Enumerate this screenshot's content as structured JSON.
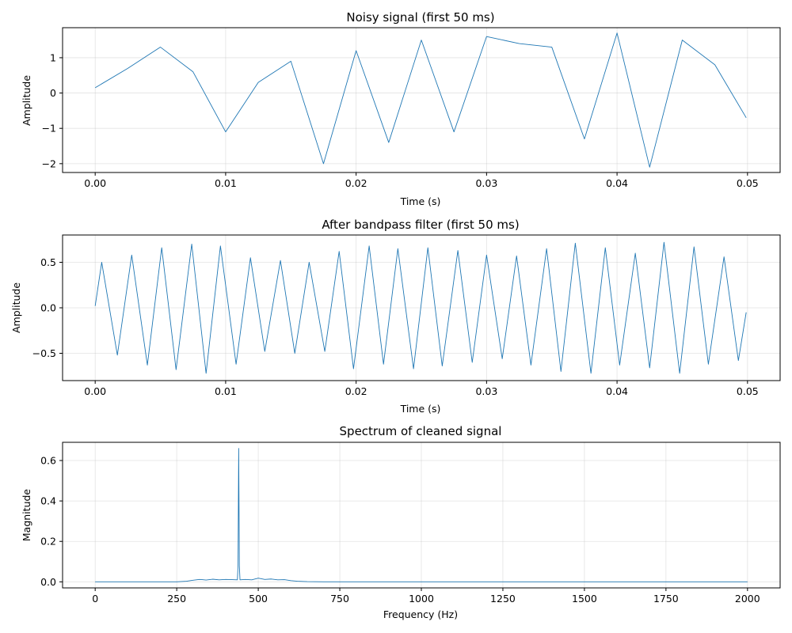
{
  "colors": {
    "series": "#1f77b4"
  },
  "chart_data": [
    {
      "type": "line",
      "title": "Noisy signal (first 50 ms)",
      "xlabel": "Time (s)",
      "ylabel": "Amplitude",
      "xlim": [
        -0.0025,
        0.0525
      ],
      "ylim": [
        -2.25,
        1.85
      ],
      "xticks": [
        0.0,
        0.01,
        0.02,
        0.03,
        0.04,
        0.05
      ],
      "xtick_labels": [
        "0.00",
        "0.01",
        "0.02",
        "0.03",
        "0.04",
        "0.05"
      ],
      "yticks": [
        -2,
        -1,
        0,
        1
      ],
      "ytick_labels": [
        "−2",
        "−1",
        "0",
        "1"
      ],
      "grid": true,
      "series": [
        {
          "x": [
            0.0,
            0.0025,
            0.005,
            0.0075,
            0.01,
            0.0125,
            0.015,
            0.0175,
            0.02,
            0.0225,
            0.025,
            0.0275,
            0.03,
            0.0325,
            0.035,
            0.0375,
            0.04,
            0.0425,
            0.045,
            0.0475,
            0.0499
          ],
          "y": [
            0.15,
            0.7,
            1.3,
            0.6,
            -1.1,
            0.3,
            0.9,
            -2.0,
            1.2,
            -1.4,
            1.5,
            -1.1,
            1.6,
            1.4,
            1.3,
            -1.3,
            1.7,
            -2.1,
            1.5,
            0.8,
            -0.7
          ]
        }
      ]
    },
    {
      "type": "line",
      "title": "After bandpass filter (first 50 ms)",
      "xlabel": "Time (s)",
      "ylabel": "Amplitude",
      "xlim": [
        -0.0025,
        0.0525
      ],
      "ylim": [
        -0.8,
        0.8
      ],
      "xticks": [
        0.0,
        0.01,
        0.02,
        0.03,
        0.04,
        0.05
      ],
      "xtick_labels": [
        "0.00",
        "0.01",
        "0.02",
        "0.03",
        "0.04",
        "0.05"
      ],
      "yticks": [
        -0.5,
        0.0,
        0.5
      ],
      "ytick_labels": [
        "−0.5",
        "0.0",
        "0.5"
      ],
      "grid": true,
      "series": [
        {
          "x": [
            0.0,
            0.0005,
            0.0017,
            0.0028,
            0.004,
            0.0051,
            0.0062,
            0.0074,
            0.0085,
            0.0096,
            0.0108,
            0.0119,
            0.013,
            0.0142,
            0.0153,
            0.0164,
            0.0176,
            0.0187,
            0.0198,
            0.021,
            0.0221,
            0.0232,
            0.0244,
            0.0255,
            0.0266,
            0.0278,
            0.0289,
            0.03,
            0.0312,
            0.0323,
            0.0334,
            0.0346,
            0.0357,
            0.0368,
            0.038,
            0.0391,
            0.0402,
            0.0414,
            0.0425,
            0.0436,
            0.0448,
            0.0459,
            0.047,
            0.0482,
            0.0493,
            0.0499
          ],
          "y": [
            0.02,
            0.5,
            -0.52,
            0.58,
            -0.63,
            0.66,
            -0.68,
            0.7,
            -0.72,
            0.68,
            -0.62,
            0.55,
            -0.48,
            0.52,
            -0.5,
            0.5,
            -0.48,
            0.62,
            -0.67,
            0.68,
            -0.62,
            0.65,
            -0.67,
            0.66,
            -0.64,
            0.63,
            -0.6,
            0.58,
            -0.56,
            0.57,
            -0.63,
            0.65,
            -0.7,
            0.71,
            -0.72,
            0.66,
            -0.63,
            0.6,
            -0.66,
            0.72,
            -0.72,
            0.67,
            -0.62,
            0.56,
            -0.58,
            -0.05
          ]
        }
      ]
    },
    {
      "type": "line",
      "title": "Spectrum of cleaned signal",
      "xlabel": "Frequency (Hz)",
      "ylabel": "Magnitude",
      "xlim": [
        -100,
        2100
      ],
      "ylim": [
        -0.03,
        0.69
      ],
      "xticks": [
        0,
        250,
        500,
        750,
        1000,
        1250,
        1500,
        1750,
        2000
      ],
      "xtick_labels": [
        "0",
        "250",
        "500",
        "750",
        "1000",
        "1250",
        "1500",
        "1750",
        "2000"
      ],
      "yticks": [
        0.0,
        0.2,
        0.4,
        0.6
      ],
      "ytick_labels": [
        "0.0",
        "0.2",
        "0.4",
        "0.6"
      ],
      "grid": true,
      "series": [
        {
          "x": [
            0,
            250,
            280,
            300,
            320,
            340,
            360,
            380,
            400,
            420,
            436,
            438,
            440,
            442,
            444,
            460,
            480,
            500,
            520,
            540,
            560,
            580,
            600,
            620,
            650,
            700,
            1000,
            2000
          ],
          "y": [
            0.0,
            0.0,
            0.003,
            0.008,
            0.012,
            0.009,
            0.013,
            0.01,
            0.012,
            0.011,
            0.01,
            0.08,
            0.66,
            0.08,
            0.01,
            0.012,
            0.01,
            0.018,
            0.012,
            0.014,
            0.01,
            0.011,
            0.006,
            0.003,
            0.001,
            0.0,
            0.0,
            0.0
          ]
        }
      ]
    }
  ]
}
